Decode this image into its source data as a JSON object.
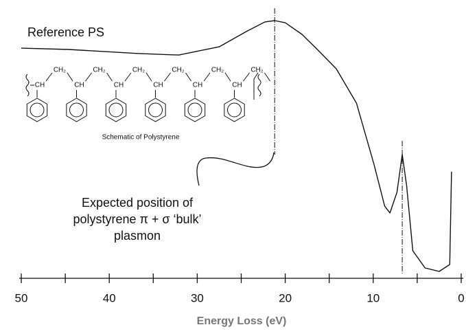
{
  "chart_data": {
    "type": "line",
    "x_label": "Energy Loss (eV)",
    "xlim": [
      50,
      0
    ],
    "ylim": [
      0,
      100
    ],
    "xticks": [
      50,
      40,
      30,
      20,
      10,
      0
    ],
    "xminor_ticks": [
      45,
      35,
      25,
      15,
      5
    ],
    "markers": [
      21.2,
      6.7
    ],
    "series": [
      {
        "name": "Reference PS",
        "color": "#111111",
        "x": [
          50,
          44.6,
          36.8,
          32.1,
          27.5,
          24.3,
          22.3,
          21.2,
          20.0,
          18.1,
          16.5,
          14.2,
          11.9,
          9.9,
          8.7,
          8.1,
          7.3,
          6.7,
          6.2,
          5.5,
          4.1,
          2.5,
          1.3,
          1.1
        ],
        "values": [
          87,
          86.5,
          85,
          84.4,
          87.5,
          93.5,
          96.9,
          97.4,
          96.6,
          92.2,
          87,
          79.2,
          66.2,
          42.9,
          27.3,
          24.7,
          32.5,
          46.8,
          35,
          10.4,
          3.9,
          2.6,
          5.2,
          40.3
        ]
      }
    ],
    "structure": {
      "caption": "Schematic of Polystyrene",
      "backbone": [
        "CH",
        "CH₂",
        "CH",
        "CH₂",
        "CH",
        "CH₂",
        "CH",
        "CH₂",
        "CH",
        "CH₂",
        "CH",
        "CH₂"
      ]
    },
    "annotation": [
      "Expected position of",
      "polystyrene π + σ ‘bulk’",
      "plasmon"
    ]
  }
}
